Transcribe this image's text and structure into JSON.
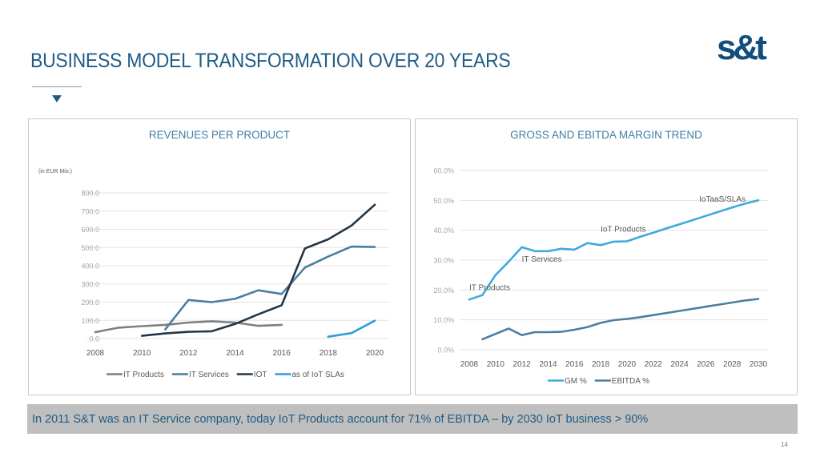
{
  "slide": {
    "title": "BUSINESS MODEL TRANSFORMATION OVER 20 YEARS",
    "logo_text": "s&t",
    "banner_text": "In 2011 S&T was an IT Service company, today IoT Products account for 71% of EBITDA – by 2030 IoT business > 90%",
    "page_number": "14",
    "colors": {
      "title": "#1f5c85",
      "logo": "#114e7e",
      "banner_bg": "#bfbfbf",
      "panel_title": "#3e7fa6"
    }
  },
  "chart_data": [
    {
      "type": "line",
      "title": "REVENUES PER PRODUCT",
      "unit_note": "(in EUR Mio.)",
      "xlabel": "",
      "ylabel": "",
      "x": [
        2008,
        2009,
        2010,
        2011,
        2012,
        2013,
        2014,
        2015,
        2016,
        2017,
        2018,
        2019,
        2020
      ],
      "x_tick_labels": [
        "2008",
        "2010",
        "2012",
        "2014",
        "2016",
        "2018",
        "2020"
      ],
      "x_ticks": [
        2008,
        2010,
        2012,
        2014,
        2016,
        2018,
        2020
      ],
      "ylim": [
        0,
        800
      ],
      "y_ticks": [
        0,
        100,
        200,
        300,
        400,
        500,
        600,
        700,
        800
      ],
      "y_tick_labels": [
        "0.0",
        "100.0",
        "200.0",
        "300.0",
        "400.0",
        "500.0",
        "600.0",
        "700.0",
        "800.0"
      ],
      "grid": true,
      "legend": "bottom",
      "series": [
        {
          "name": "IT Products",
          "color": "#7f7f7f",
          "values": [
            35,
            60,
            68,
            75,
            88,
            95,
            88,
            70,
            75,
            null,
            null,
            null,
            null
          ]
        },
        {
          "name": "IT Services",
          "color": "#4a7fa3",
          "values": [
            null,
            null,
            null,
            50,
            212,
            200,
            218,
            265,
            245,
            390,
            450,
            505,
            503
          ]
        },
        {
          "name": "IOT",
          "color": "#253746",
          "values": [
            null,
            null,
            15,
            28,
            37,
            40,
            80,
            133,
            183,
            495,
            545,
            620,
            735
          ]
        },
        {
          "name": "as of IoT SLAs",
          "color": "#2e9fd9",
          "values": [
            null,
            null,
            null,
            null,
            null,
            null,
            null,
            null,
            null,
            null,
            10,
            30,
            98
          ]
        }
      ]
    },
    {
      "type": "line",
      "title": "GROSS AND EBITDA MARGIN TREND",
      "xlabel": "",
      "ylabel": "",
      "x": [
        2008,
        2009,
        2010,
        2011,
        2012,
        2013,
        2014,
        2015,
        2016,
        2017,
        2018,
        2019,
        2020,
        2021,
        2022,
        2023,
        2024,
        2025,
        2026,
        2027,
        2028,
        2029,
        2030
      ],
      "x_ticks": [
        2008,
        2010,
        2012,
        2014,
        2016,
        2018,
        2020,
        2022,
        2024,
        2026,
        2028,
        2030
      ],
      "x_tick_labels": [
        "2008",
        "2010",
        "2012",
        "2014",
        "2016",
        "2018",
        "2020",
        "2022",
        "2024",
        "2026",
        "2028",
        "2030"
      ],
      "ylim": [
        0,
        60
      ],
      "y_ticks": [
        0,
        10,
        20,
        30,
        40,
        50,
        60
      ],
      "y_tick_labels": [
        "0.0%",
        "10.0%",
        "20.0%",
        "30.0%",
        "40.0%",
        "50.0%",
        "60.0%"
      ],
      "grid": true,
      "legend": "bottom",
      "annotations": [
        {
          "text": "IT Products",
          "x": 2008,
          "y": 20
        },
        {
          "text": "IT Services",
          "x": 2012,
          "y": 29.5
        },
        {
          "text": "IoT Products",
          "x": 2018,
          "y": 39.5
        },
        {
          "text": "IoTaaS/SLAs",
          "x": 2025.5,
          "y": 49.5
        }
      ],
      "series": [
        {
          "name": "GM %",
          "color": "#3fa9e0",
          "values": [
            16.8,
            18.3,
            25.0,
            29.5,
            34.3,
            33.0,
            33.0,
            33.8,
            33.5,
            35.7,
            35.0,
            36.2,
            36.3,
            37.8,
            39.2,
            40.6,
            42.0,
            43.4,
            44.8,
            46.2,
            47.6,
            48.9,
            50.0
          ]
        },
        {
          "name": "EBITDA %",
          "color": "#4a7fa3",
          "values": [
            null,
            3.5,
            5.3,
            7.1,
            4.9,
            5.9,
            5.9,
            6.0,
            6.7,
            7.6,
            9.0,
            9.9,
            10.3,
            10.9,
            11.6,
            12.3,
            13.0,
            13.7,
            14.4,
            15.1,
            15.8,
            16.5,
            17.0
          ]
        }
      ]
    }
  ]
}
